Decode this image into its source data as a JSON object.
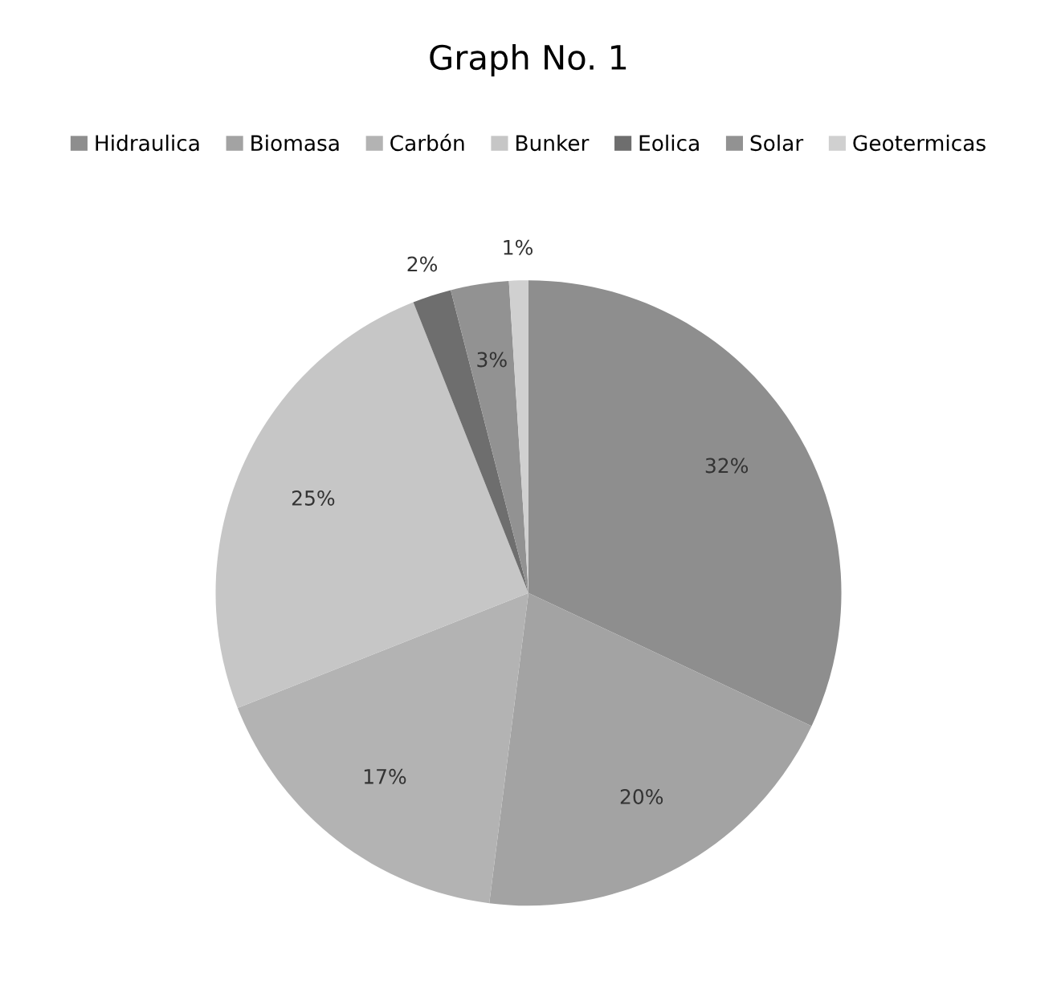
{
  "chart_data": {
    "type": "pie",
    "title": "Graph No. 1",
    "categories": [
      "Hidraulica",
      "Biomasa",
      "Carbón",
      "Bunker",
      "Eolica",
      "Solar",
      "Geotermicas"
    ],
    "values": [
      32,
      20,
      17,
      25,
      2,
      3,
      1
    ],
    "value_labels": [
      "32%",
      "20%",
      "17%",
      "25%",
      "2%",
      "3%",
      "1%"
    ],
    "colors": [
      "#8e8e8e",
      "#a3a3a3",
      "#b3b3b3",
      "#c6c6c6",
      "#6e6e6e",
      "#929292",
      "#d0d0d0"
    ],
    "legend": "top"
  }
}
